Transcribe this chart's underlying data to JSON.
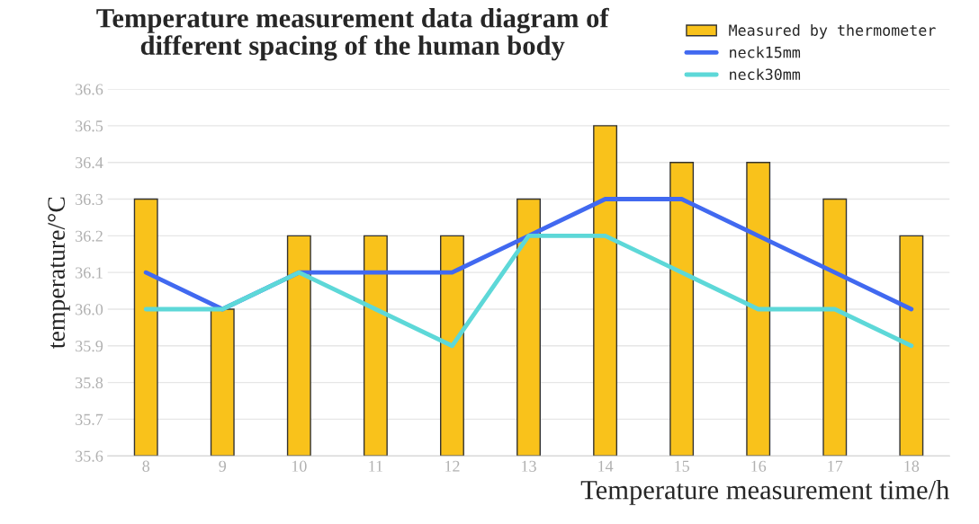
{
  "chart_data": {
    "type": "bar",
    "title": "Temperature measurement data diagram of\ndifferent spacing of the human body",
    "xlabel": "Temperature measurement time/h",
    "ylabel": "temperature/°C",
    "categories": [
      "8",
      "9",
      "10",
      "11",
      "12",
      "13",
      "14",
      "15",
      "16",
      "17",
      "18"
    ],
    "series": [
      {
        "name": "Measured by thermometer",
        "color": "#f9c21b",
        "values": [
          36.3,
          36.0,
          36.2,
          36.2,
          36.2,
          36.3,
          36.5,
          36.4,
          36.4,
          36.3,
          36.2
        ]
      },
      {
        "name": "neck15mm",
        "type": "line",
        "color": "#4169f0",
        "values": [
          36.1,
          36.0,
          36.1,
          36.1,
          36.1,
          36.2,
          36.3,
          36.3,
          36.2,
          36.1,
          36.0
        ]
      },
      {
        "name": "neck30mm",
        "type": "line",
        "color": "#5dd8d8",
        "values": [
          36.0,
          36.0,
          36.1,
          36.0,
          35.9,
          36.2,
          36.2,
          36.1,
          36.0,
          36.0,
          35.9
        ]
      }
    ],
    "ylim": [
      35.6,
      36.6
    ],
    "yticks": [
      35.6,
      35.7,
      35.8,
      35.9,
      {
        "value": 36.0,
        "label": "36.0"
      },
      36.1,
      36.2,
      36.3,
      36.4,
      36.5,
      36.6
    ],
    "grid": "y",
    "legend": "top right",
    "marker": "none",
    "line_style": "solid"
  }
}
